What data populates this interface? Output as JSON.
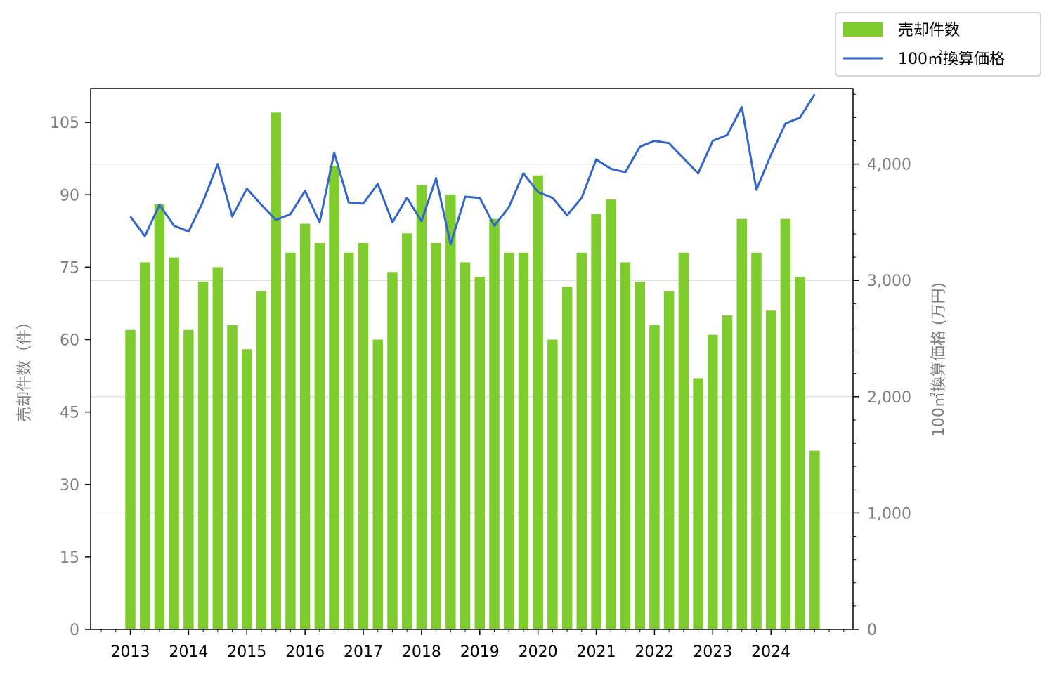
{
  "chart_data": {
    "type": "bar+line",
    "x_labels": [
      "2013",
      "2014",
      "2015",
      "2016",
      "2017",
      "2018",
      "2019",
      "2020",
      "2021",
      "2022",
      "2023",
      "2024"
    ],
    "bar_series": {
      "name": "売却件数",
      "color": "#7fcc2f",
      "values": [
        62,
        76,
        88,
        77,
        62,
        72,
        75,
        63,
        58,
        70,
        107,
        78,
        84,
        80,
        96,
        78,
        80,
        60,
        74,
        82,
        92,
        80,
        90,
        76,
        73,
        85,
        78,
        78,
        94,
        60,
        71,
        78,
        86,
        89,
        76,
        72,
        63,
        70,
        78,
        52,
        61,
        65,
        85,
        78,
        66,
        85,
        73,
        37
      ]
    },
    "line_series": {
      "name": "100㎡換算価格",
      "color": "#3366cc",
      "values": [
        3550,
        3380,
        3650,
        3470,
        3420,
        3680,
        4000,
        3550,
        3790,
        3650,
        3520,
        3570,
        3770,
        3500,
        4100,
        3670,
        3660,
        3830,
        3500,
        3710,
        3510,
        3880,
        3310,
        3720,
        3710,
        3470,
        3630,
        3920,
        3760,
        3710,
        3560,
        3710,
        4040,
        3960,
        3930,
        4150,
        4200,
        4180,
        4050,
        3920,
        4200,
        4250,
        4490,
        3780,
        4080,
        4350,
        4400,
        4600
      ]
    },
    "y_left": {
      "label": "売却件数（件）",
      "ylim": [
        0,
        112
      ],
      "ticks": [
        "0",
        "15",
        "30",
        "45",
        "60",
        "75",
        "90",
        "105"
      ],
      "tick_values": [
        0,
        15,
        30,
        45,
        60,
        75,
        90,
        105
      ]
    },
    "y_right": {
      "label": "100㎡換算価格 (万円)",
      "ylim": [
        0,
        4650
      ],
      "ticks": [
        "0",
        "1,000",
        "2,000",
        "3,000",
        "4,000"
      ],
      "tick_values": [
        0,
        1000,
        2000,
        3000,
        4000
      ]
    },
    "grid": "horizontal-right-axis",
    "legend": {
      "position": "top-right",
      "entries": [
        "売却件数",
        "100㎡換算価格"
      ]
    }
  }
}
